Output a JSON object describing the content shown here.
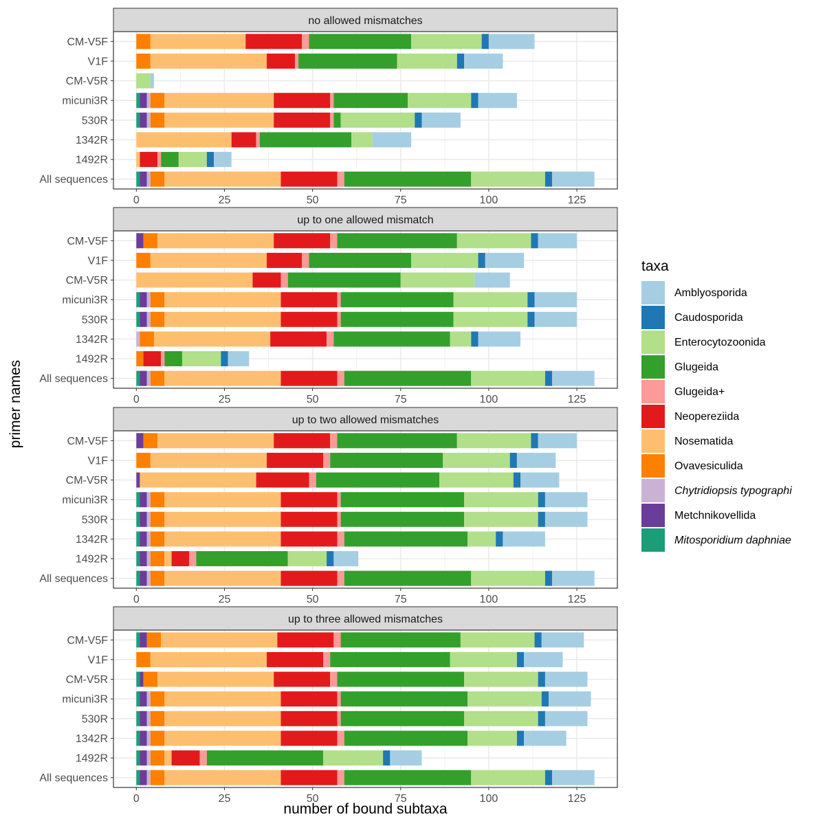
{
  "chart_data": {
    "type": "bar",
    "orientation": "horizontal",
    "stacked": true,
    "xlabel": "number of bound subtaxa",
    "ylabel": "primer names",
    "xlim": [
      -6.5,
      136.5
    ],
    "xticks": [
      0,
      25,
      50,
      75,
      100,
      125
    ],
    "grid": true,
    "legend": {
      "title": "taxa",
      "position": "right",
      "entries": [
        {
          "name": "Amblyosporida",
          "color": "#a6cee3",
          "italic": false
        },
        {
          "name": "Caudosporida",
          "color": "#1f78b4",
          "italic": false
        },
        {
          "name": "Enterocytozoonida",
          "color": "#b2df8a",
          "italic": false
        },
        {
          "name": "Glugeida",
          "color": "#33a02c",
          "italic": false
        },
        {
          "name": "Glugeida+",
          "color": "#fb9a99",
          "italic": false
        },
        {
          "name": "Neopereziida",
          "color": "#e31a1c",
          "italic": false
        },
        {
          "name": "Nosematida",
          "color": "#fdbf6f",
          "italic": false
        },
        {
          "name": "Ovavesiculida",
          "color": "#ff7f00",
          "italic": false
        },
        {
          "name": "Chytridiopsis typographi",
          "color": "#cab2d6",
          "italic": true
        },
        {
          "name": "Metchnikovellida",
          "color": "#6a3d9a",
          "italic": false
        },
        {
          "name": "Mitosporidium daphniae",
          "color": "#1b9e77",
          "italic": true
        }
      ]
    },
    "stack_order": [
      "Mitosporidium daphniae",
      "Metchnikovellida",
      "Chytridiopsis typographi",
      "Ovavesiculida",
      "Nosematida",
      "Neopereziida",
      "Glugeida+",
      "Glugeida",
      "Enterocytozoonida",
      "Caudosporida",
      "Amblyosporida"
    ],
    "categories": [
      "CM-V5F",
      "V1F",
      "CM-V5R",
      "micuni3R",
      "530R",
      "1342R",
      "1492R",
      "All sequences"
    ],
    "panels": [
      {
        "title": "no allowed mismatches",
        "rows": [
          [
            0,
            0,
            0,
            4,
            27,
            16,
            2,
            29,
            20,
            2,
            13
          ],
          [
            0,
            0,
            0,
            4,
            33,
            8,
            1,
            28,
            17,
            2,
            11
          ],
          [
            0,
            0,
            0,
            0,
            0,
            0,
            0,
            0,
            4,
            0,
            1
          ],
          [
            1,
            2,
            1,
            4,
            31,
            16,
            1,
            21,
            18,
            2,
            11
          ],
          [
            1,
            2,
            1,
            4,
            31,
            16,
            1,
            2,
            21,
            2,
            11
          ],
          [
            0,
            0,
            0,
            0,
            27,
            7,
            1,
            26,
            6,
            0,
            11
          ],
          [
            0,
            0,
            0,
            0,
            1,
            5,
            1,
            5,
            8,
            2,
            5
          ],
          [
            1,
            2,
            1,
            4,
            33,
            16,
            2,
            36,
            21,
            2,
            12
          ]
        ]
      },
      {
        "title": "up to one allowed mismatch",
        "rows": [
          [
            0,
            2,
            0,
            4,
            33,
            16,
            2,
            34,
            21,
            2,
            11
          ],
          [
            0,
            0,
            0,
            4,
            33,
            10,
            2,
            29,
            19,
            2,
            11
          ],
          [
            0,
            0,
            0,
            0,
            33,
            8,
            2,
            32,
            21,
            0,
            10
          ],
          [
            1,
            2,
            1,
            4,
            33,
            16,
            1,
            32,
            21,
            2,
            12
          ],
          [
            1,
            2,
            1,
            4,
            33,
            16,
            1,
            32,
            21,
            2,
            12
          ],
          [
            0,
            0,
            1,
            4,
            33,
            16,
            2,
            33,
            6,
            2,
            12
          ],
          [
            0,
            0,
            0,
            2,
            0,
            5,
            1,
            5,
            11,
            2,
            6
          ],
          [
            1,
            2,
            1,
            4,
            33,
            16,
            2,
            36,
            21,
            2,
            12
          ]
        ]
      },
      {
        "title": "up to two allowed mismatches",
        "rows": [
          [
            0,
            2,
            0,
            4,
            33,
            16,
            2,
            34,
            21,
            2,
            11
          ],
          [
            0,
            0,
            0,
            4,
            33,
            16,
            2,
            32,
            19,
            2,
            11
          ],
          [
            0,
            1,
            0,
            0,
            33,
            15,
            2,
            35,
            21,
            2,
            11
          ],
          [
            1,
            2,
            1,
            4,
            33,
            16,
            1,
            35,
            21,
            2,
            12
          ],
          [
            1,
            2,
            1,
            4,
            33,
            16,
            1,
            35,
            21,
            2,
            12
          ],
          [
            1,
            2,
            1,
            4,
            33,
            16,
            2,
            35,
            8,
            2,
            12
          ],
          [
            1,
            2,
            1,
            4,
            2,
            5,
            2,
            26,
            11,
            2,
            7
          ],
          [
            1,
            2,
            1,
            4,
            33,
            16,
            2,
            36,
            21,
            2,
            12
          ]
        ]
      },
      {
        "title": "up to three allowed mismatches",
        "rows": [
          [
            1,
            2,
            0,
            4,
            33,
            16,
            2,
            34,
            21,
            2,
            12
          ],
          [
            0,
            0,
            0,
            4,
            33,
            16,
            2,
            34,
            19,
            2,
            11
          ],
          [
            1,
            1,
            0,
            4,
            33,
            16,
            2,
            36,
            21,
            2,
            12
          ],
          [
            1,
            2,
            1,
            4,
            33,
            16,
            1,
            36,
            21,
            2,
            12
          ],
          [
            1,
            2,
            1,
            4,
            33,
            16,
            1,
            35,
            21,
            2,
            12
          ],
          [
            1,
            2,
            1,
            4,
            33,
            16,
            2,
            35,
            14,
            2,
            12
          ],
          [
            1,
            2,
            1,
            4,
            2,
            8,
            2,
            33,
            17,
            2,
            9
          ],
          [
            1,
            2,
            1,
            4,
            33,
            16,
            2,
            36,
            21,
            2,
            12
          ]
        ]
      }
    ]
  }
}
